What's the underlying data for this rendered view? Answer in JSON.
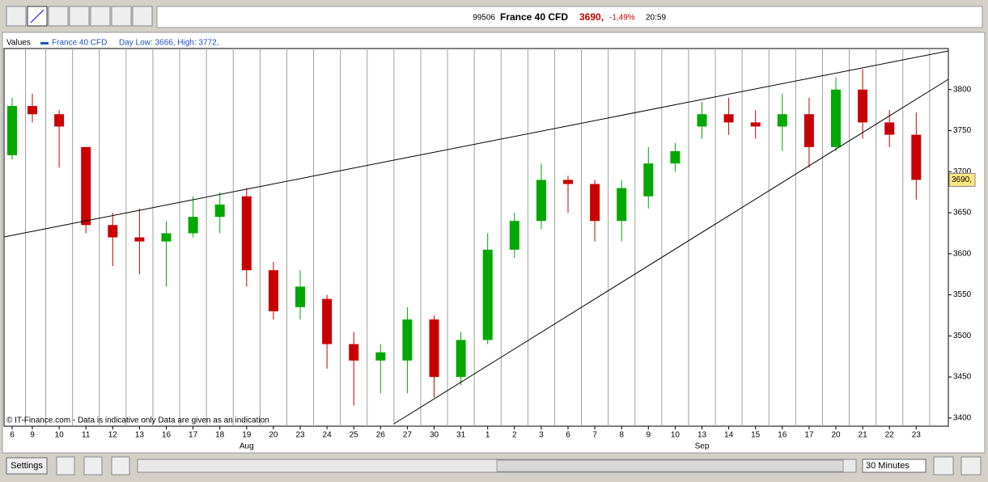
{
  "toolbar": {
    "code": "99506",
    "instrument": "France 40 CFD",
    "price": "3690,",
    "change": "-1,49%",
    "time": "20:59"
  },
  "chart_data": {
    "type": "candlestick",
    "legend_title": "Values",
    "series_name": "France 40 CFD",
    "day_range": "Day Low: 3666, High: 3772,",
    "footer": "© IT-Finance.com - Data is indicative only Data are given as an indication",
    "categories": [
      "6",
      "9",
      "10",
      "11",
      "12",
      "13",
      "16",
      "17",
      "18",
      "19",
      "20",
      "23",
      "24",
      "25",
      "26",
      "27",
      "30",
      "31",
      "1",
      "2",
      "3",
      "6",
      "7",
      "8",
      "9",
      "10",
      "13",
      "14",
      "15",
      "16",
      "17",
      "20",
      "21",
      "22",
      "23"
    ],
    "month_labels": [
      null,
      null,
      null,
      null,
      null,
      null,
      null,
      null,
      null,
      "Aug",
      null,
      null,
      null,
      null,
      null,
      null,
      null,
      null,
      null,
      null,
      null,
      null,
      null,
      null,
      null,
      null,
      "Sep",
      null,
      null,
      null,
      null,
      null,
      null,
      null,
      null
    ],
    "open": [
      3720,
      3780,
      3770,
      3730,
      3635,
      3620,
      3615,
      3625,
      3645,
      3670,
      3580,
      3535,
      3545,
      3490,
      3470,
      3470,
      3520,
      3450,
      3495,
      3605,
      3640,
      3690,
      3685,
      3640,
      3670,
      3710,
      3755,
      3770,
      3760,
      3755,
      3770,
      3730,
      3800,
      3760,
      3745
    ],
    "high": [
      3790,
      3795,
      3775,
      3730,
      3650,
      3655,
      3640,
      3670,
      3675,
      3680,
      3590,
      3580,
      3550,
      3505,
      3490,
      3535,
      3525,
      3505,
      3625,
      3650,
      3710,
      3695,
      3690,
      3690,
      3730,
      3735,
      3785,
      3790,
      3775,
      3795,
      3790,
      3815,
      3825,
      3775,
      3772
    ],
    "low": [
      3715,
      3760,
      3705,
      3625,
      3585,
      3575,
      3560,
      3620,
      3625,
      3560,
      3520,
      3520,
      3460,
      3415,
      3430,
      3430,
      3425,
      3440,
      3490,
      3595,
      3630,
      3650,
      3615,
      3615,
      3655,
      3700,
      3740,
      3745,
      3740,
      3725,
      3705,
      3725,
      3740,
      3730,
      3666
    ],
    "close": [
      3780,
      3770,
      3755,
      3635,
      3620,
      3615,
      3625,
      3645,
      3660,
      3580,
      3530,
      3560,
      3490,
      3470,
      3480,
      3520,
      3450,
      3495,
      3605,
      3640,
      3690,
      3685,
      3640,
      3680,
      3710,
      3725,
      3770,
      3760,
      3755,
      3770,
      3730,
      3800,
      3760,
      3745,
      3690
    ],
    "up_color": "#00a800",
    "down_color": "#c80000",
    "ylim": [
      3390,
      3850
    ],
    "yticks": [
      3400,
      3450,
      3500,
      3550,
      3600,
      3650,
      3700,
      3750,
      3800
    ],
    "grid": "vertical",
    "last_label": "3690,"
  },
  "controls": {
    "settings": "Settings",
    "interval": "30 Minutes"
  }
}
